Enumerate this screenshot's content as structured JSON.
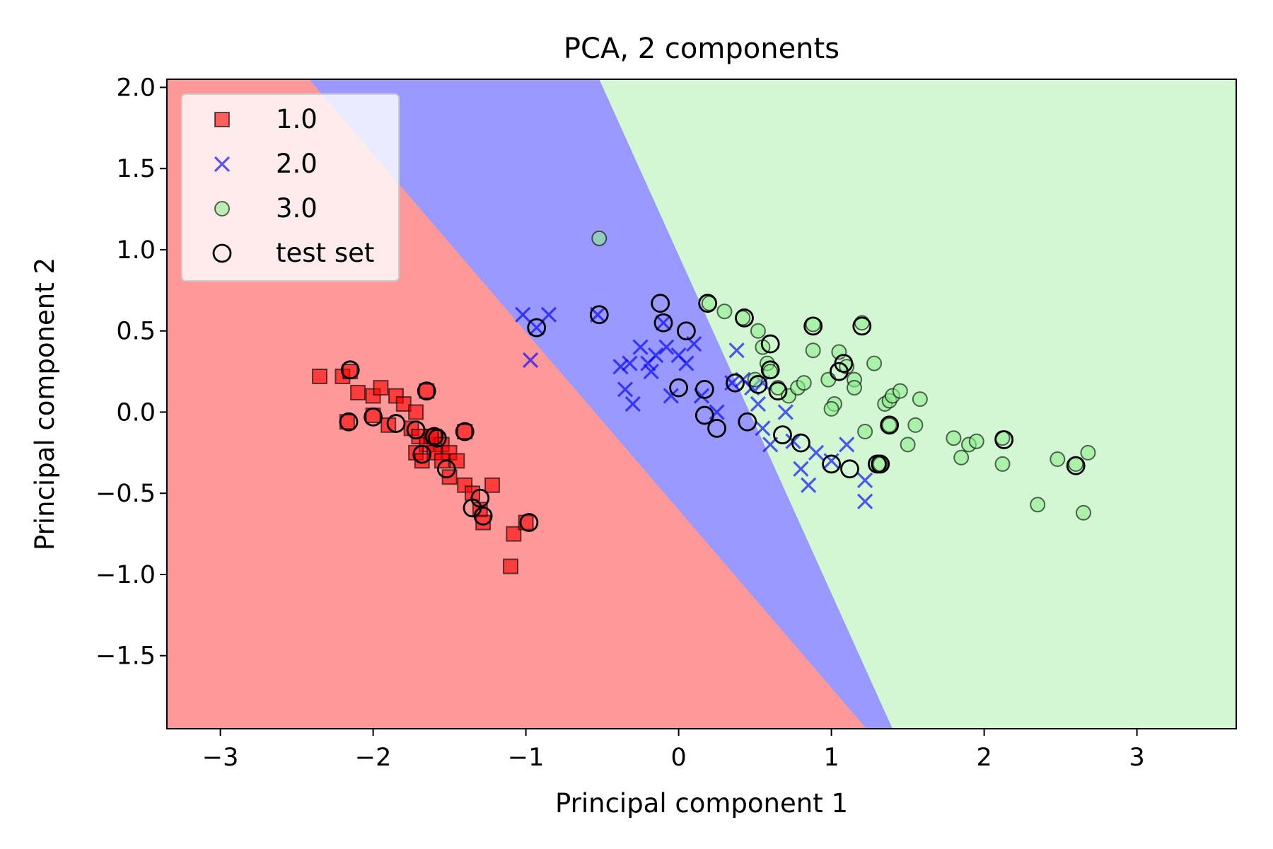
{
  "chart_data": {
    "type": "scatter",
    "title": "PCA, 2 components",
    "xlabel": "Principal component 1",
    "ylabel": "Principal component 2",
    "xlim": [
      -3.35,
      3.65
    ],
    "ylim": [
      -1.95,
      2.05
    ],
    "xticks": [
      -3,
      -2,
      -1,
      0,
      1,
      2,
      3
    ],
    "yticks": [
      -1.5,
      -1.0,
      -0.5,
      0.0,
      0.5,
      1.0,
      1.5,
      2.0
    ],
    "xtick_labels": [
      "−3",
      "−2",
      "−1",
      "0",
      "1",
      "2",
      "3"
    ],
    "ytick_labels": [
      "−1.5",
      "−1.0",
      "−0.5",
      "0.0",
      "0.5",
      "1.0",
      "1.5",
      "2.0"
    ],
    "grid": false,
    "legend_position": "top-left",
    "decision_regions": [
      {
        "class": "1.0",
        "color": "#ff9999",
        "boundary": [
          [
            -2.42,
            2.05
          ],
          [
            1.23,
            -1.95
          ]
        ]
      },
      {
        "class": "2.0",
        "color": "#9999ff",
        "boundary": [
          [
            -0.52,
            2.05
          ],
          [
            1.4,
            -1.95
          ]
        ]
      },
      {
        "class": "3.0",
        "color": "#d2f7d2"
      }
    ],
    "series": [
      {
        "name": "1.0",
        "marker": "square",
        "color": "#ff0000",
        "points": [
          [
            -2.35,
            0.22
          ],
          [
            -2.2,
            0.22
          ],
          [
            -2.15,
            0.25
          ],
          [
            -2.1,
            0.12
          ],
          [
            -2.0,
            0.1
          ],
          [
            -1.95,
            0.15
          ],
          [
            -1.85,
            0.1
          ],
          [
            -1.8,
            0.05
          ],
          [
            -1.72,
            0.0
          ],
          [
            -1.75,
            -0.1
          ],
          [
            -1.7,
            -0.15
          ],
          [
            -1.65,
            -0.2
          ],
          [
            -1.6,
            -0.15
          ],
          [
            -1.55,
            -0.2
          ],
          [
            -1.5,
            -0.25
          ],
          [
            -1.6,
            -0.25
          ],
          [
            -1.72,
            -0.25
          ],
          [
            -1.68,
            -0.3
          ],
          [
            -1.55,
            -0.3
          ],
          [
            -1.5,
            -0.4
          ],
          [
            -1.45,
            -0.3
          ],
          [
            -1.4,
            -0.45
          ],
          [
            -1.35,
            -0.5
          ],
          [
            -1.3,
            -0.6
          ],
          [
            -1.28,
            -0.68
          ],
          [
            -1.22,
            -0.45
          ],
          [
            -1.08,
            -0.75
          ],
          [
            -1.1,
            -0.95
          ],
          [
            -1.0,
            -0.68
          ],
          [
            -2.17,
            -0.06
          ],
          [
            -2.0,
            -0.02
          ],
          [
            -1.9,
            -0.08
          ],
          [
            -1.62,
            -0.15
          ],
          [
            -1.4,
            -0.12
          ],
          [
            -1.65,
            0.13
          ]
        ]
      },
      {
        "name": "2.0",
        "marker": "x",
        "color": "#0000ff",
        "points": [
          [
            -1.02,
            0.6
          ],
          [
            -0.85,
            0.6
          ],
          [
            -0.97,
            0.32
          ],
          [
            -0.93,
            0.52
          ],
          [
            -0.53,
            0.6
          ],
          [
            -0.38,
            0.28
          ],
          [
            -0.32,
            0.3
          ],
          [
            -0.35,
            0.14
          ],
          [
            -0.3,
            0.05
          ],
          [
            -0.25,
            0.4
          ],
          [
            -0.2,
            0.3
          ],
          [
            -0.18,
            0.25
          ],
          [
            -0.15,
            0.35
          ],
          [
            -0.1,
            0.55
          ],
          [
            -0.08,
            0.4
          ],
          [
            -0.05,
            0.1
          ],
          [
            0.0,
            0.35
          ],
          [
            0.05,
            0.3
          ],
          [
            0.1,
            0.42
          ],
          [
            0.15,
            0.1
          ],
          [
            0.25,
            0.0
          ],
          [
            0.38,
            0.38
          ],
          [
            0.42,
            0.2
          ],
          [
            0.48,
            0.15
          ],
          [
            0.52,
            0.05
          ],
          [
            0.55,
            -0.1
          ],
          [
            0.6,
            -0.2
          ],
          [
            0.7,
            0.0
          ],
          [
            0.75,
            -0.18
          ],
          [
            0.8,
            -0.35
          ],
          [
            0.85,
            -0.45
          ],
          [
            0.9,
            -0.25
          ],
          [
            1.0,
            -0.3
          ],
          [
            1.1,
            -0.2
          ],
          [
            1.22,
            -0.42
          ],
          [
            1.22,
            -0.55
          ],
          [
            0.55,
            0.18
          ],
          [
            0.35,
            0.18
          ]
        ]
      },
      {
        "name": "3.0",
        "marker": "circle",
        "color": "#90ee90",
        "points": [
          [
            -0.52,
            1.07
          ],
          [
            0.2,
            0.67
          ],
          [
            0.3,
            0.62
          ],
          [
            0.42,
            0.58
          ],
          [
            0.52,
            0.5
          ],
          [
            0.55,
            0.4
          ],
          [
            0.58,
            0.3
          ],
          [
            0.65,
            0.15
          ],
          [
            0.72,
            0.1
          ],
          [
            0.78,
            0.15
          ],
          [
            0.82,
            0.18
          ],
          [
            0.88,
            0.38
          ],
          [
            0.88,
            0.54
          ],
          [
            0.98,
            0.2
          ],
          [
            1.02,
            0.05
          ],
          [
            1.05,
            0.37
          ],
          [
            1.1,
            0.28
          ],
          [
            1.15,
            0.2
          ],
          [
            1.2,
            0.55
          ],
          [
            1.28,
            0.3
          ],
          [
            1.35,
            0.05
          ],
          [
            1.38,
            0.07
          ],
          [
            1.4,
            0.1
          ],
          [
            1.45,
            0.13
          ],
          [
            1.5,
            -0.2
          ],
          [
            1.55,
            -0.08
          ],
          [
            1.58,
            0.08
          ],
          [
            1.8,
            -0.16
          ],
          [
            1.85,
            -0.28
          ],
          [
            1.9,
            -0.2
          ],
          [
            1.95,
            -0.18
          ],
          [
            2.12,
            -0.32
          ],
          [
            2.12,
            -0.16
          ],
          [
            2.35,
            -0.57
          ],
          [
            2.48,
            -0.29
          ],
          [
            2.6,
            -0.32
          ],
          [
            2.65,
            -0.62
          ],
          [
            2.68,
            -0.25
          ],
          [
            1.0,
            0.02
          ],
          [
            1.22,
            -0.12
          ],
          [
            1.15,
            0.15
          ],
          [
            0.6,
            0.25
          ],
          [
            0.5,
            0.2
          ],
          [
            1.32,
            -0.32
          ],
          [
            1.38,
            -0.08
          ]
        ]
      },
      {
        "name": "test set",
        "marker": "open-circle",
        "color": "#000000",
        "points": [
          [
            -2.15,
            0.26
          ],
          [
            -2.16,
            -0.06
          ],
          [
            -2.0,
            -0.03
          ],
          [
            -1.85,
            -0.07
          ],
          [
            -1.72,
            -0.11
          ],
          [
            -1.68,
            -0.26
          ],
          [
            -1.6,
            -0.15
          ],
          [
            -1.58,
            -0.16
          ],
          [
            -1.52,
            -0.35
          ],
          [
            -1.65,
            0.13
          ],
          [
            -1.4,
            -0.12
          ],
          [
            -1.35,
            -0.59
          ],
          [
            -1.3,
            -0.53
          ],
          [
            -1.28,
            -0.64
          ],
          [
            -0.98,
            -0.68
          ],
          [
            -0.93,
            0.52
          ],
          [
            -0.52,
            0.6
          ],
          [
            -0.12,
            0.67
          ],
          [
            -0.1,
            0.55
          ],
          [
            0.05,
            0.5
          ],
          [
            0.0,
            0.15
          ],
          [
            0.17,
            0.14
          ],
          [
            0.17,
            -0.02
          ],
          [
            0.25,
            -0.1
          ],
          [
            0.37,
            0.18
          ],
          [
            0.45,
            -0.06
          ],
          [
            0.52,
            0.17
          ],
          [
            0.6,
            0.42
          ],
          [
            0.6,
            0.26
          ],
          [
            0.65,
            0.13
          ],
          [
            0.68,
            -0.14
          ],
          [
            0.8,
            -0.19
          ],
          [
            0.88,
            0.53
          ],
          [
            1.0,
            -0.32
          ],
          [
            1.05,
            0.25
          ],
          [
            1.08,
            0.3
          ],
          [
            1.12,
            -0.35
          ],
          [
            1.2,
            0.53
          ],
          [
            1.32,
            -0.32
          ],
          [
            1.38,
            -0.08
          ],
          [
            2.13,
            -0.17
          ],
          [
            2.6,
            -0.33
          ],
          [
            0.19,
            0.67
          ],
          [
            0.43,
            0.58
          ],
          [
            1.3,
            -0.32
          ]
        ]
      }
    ],
    "legend": [
      {
        "label": "1.0",
        "marker": "square"
      },
      {
        "label": "2.0",
        "marker": "x"
      },
      {
        "label": "3.0",
        "marker": "circle"
      },
      {
        "label": "test set",
        "marker": "open-circle"
      }
    ]
  }
}
